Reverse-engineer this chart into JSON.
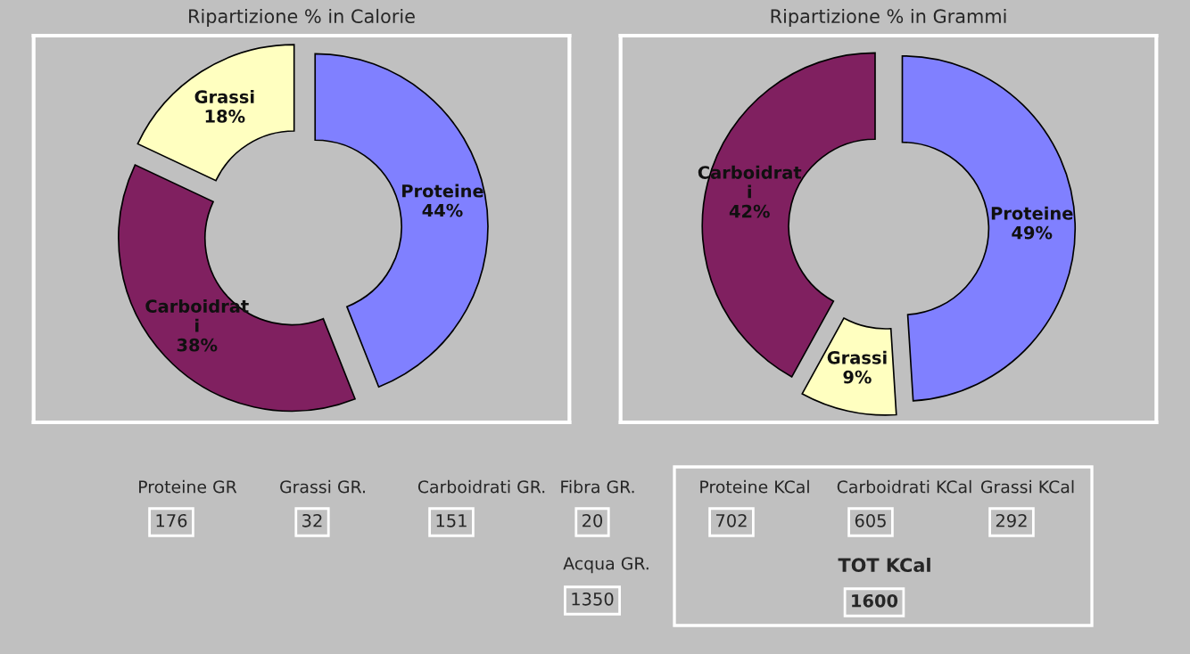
{
  "chart_data": [
    {
      "type": "donut",
      "title": "Ripartizione % in Calorie",
      "categories": [
        "Proteine",
        "Carboidrati",
        "Grassi"
      ],
      "values": [
        44,
        38,
        18
      ],
      "value_labels": [
        "44%",
        "38%",
        "18%"
      ],
      "colors": [
        "#8080ff",
        "#802060",
        "#ffffc0"
      ],
      "legend": false
    },
    {
      "type": "donut",
      "title": "Ripartizione % in Grammi",
      "categories": [
        "Proteine",
        "Grassi",
        "Carboidrati"
      ],
      "values": [
        49,
        9,
        42
      ],
      "value_labels": [
        "49%",
        "9%",
        "42%"
      ],
      "colors": [
        "#8080ff",
        "#ffffc0",
        "#802060"
      ],
      "legend": false
    },
    {
      "type": "other",
      "annotations": [
        "Proteine GR",
        "176",
        "Grassi GR.",
        "32",
        "Carboidrati GR.",
        "151",
        "Fibra GR.",
        "20",
        "Acqua GR.",
        "1350",
        "Proteine KCal",
        "702",
        "Carboidrati KCal",
        "605",
        "Grassi KCal",
        "292",
        "TOT KCal",
        "1600"
      ]
    }
  ]
}
